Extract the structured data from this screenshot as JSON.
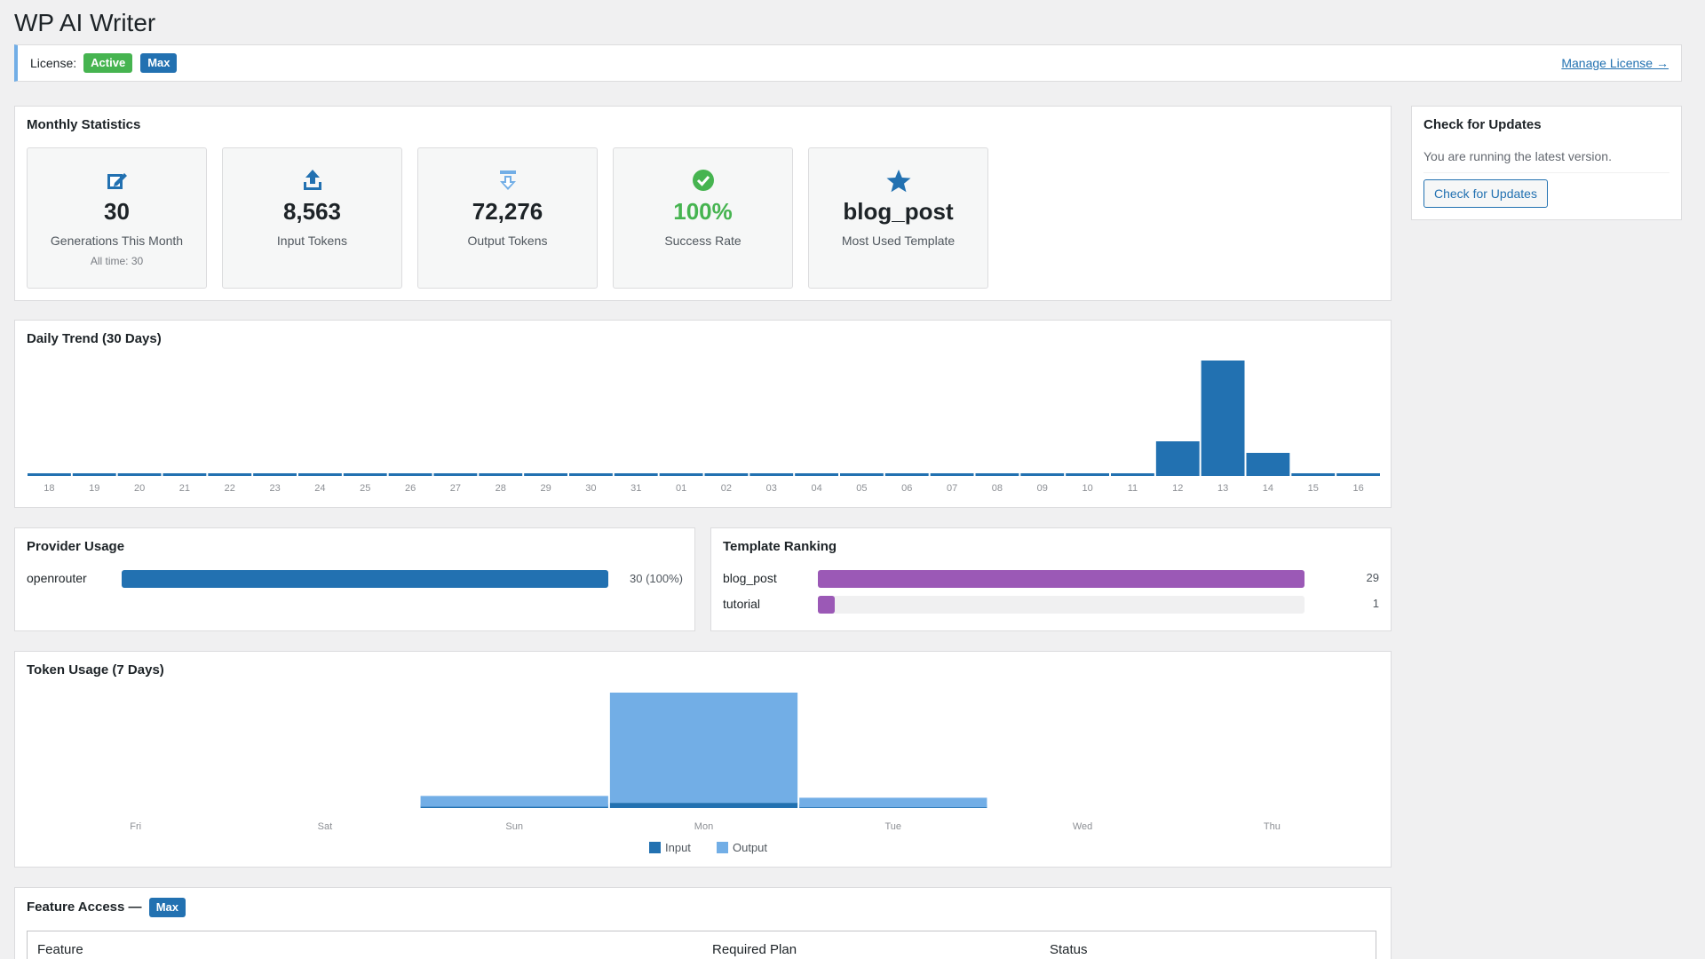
{
  "app": {
    "title": "WP AI Writer"
  },
  "license": {
    "label": "License:",
    "status": "Active",
    "plan": "Max",
    "manage_link": "Manage License →"
  },
  "monthly": {
    "title": "Monthly Statistics",
    "stats": [
      {
        "value": "30",
        "label": "Generations This Month",
        "sub": "All time: 30",
        "icon": "edit-icon"
      },
      {
        "value": "8,563",
        "label": "Input Tokens",
        "icon": "upload-icon"
      },
      {
        "value": "72,276",
        "label": "Output Tokens",
        "icon": "download-icon"
      },
      {
        "value": "100%",
        "label": "Success Rate",
        "icon": "check-circle-icon"
      },
      {
        "value": "blog_post",
        "label": "Most Used Template",
        "icon": "star-icon"
      }
    ]
  },
  "updates": {
    "title": "Check for Updates",
    "message": "You are running the latest version.",
    "button": "Check for Updates"
  },
  "colors": {
    "accent": "#2271b1",
    "light_blue": "#72aee6",
    "purple": "#9b59b6",
    "success": "#46b450"
  },
  "provider": {
    "title": "Provider Usage",
    "items": [
      {
        "name": "openrouter",
        "value": 30,
        "label": "30 (100%)",
        "fraction": 1.0
      }
    ]
  },
  "templates": {
    "title": "Template Ranking",
    "items": [
      {
        "name": "blog_post",
        "value": 29,
        "label": "29",
        "fraction": 1.0
      },
      {
        "name": "tutorial",
        "value": 1,
        "label": "1",
        "fraction": 0.0345
      }
    ]
  },
  "feature": {
    "title": "Feature Access —",
    "plan": "Max",
    "columns": [
      "Feature",
      "Required Plan",
      "Status"
    ]
  },
  "chart_data": [
    {
      "type": "bar",
      "title": "Daily Trend (30 Days)",
      "categories": [
        "18",
        "19",
        "20",
        "21",
        "22",
        "23",
        "24",
        "25",
        "26",
        "27",
        "28",
        "29",
        "30",
        "31",
        "01",
        "02",
        "03",
        "04",
        "05",
        "06",
        "07",
        "08",
        "09",
        "10",
        "11",
        "12",
        "13",
        "14",
        "15",
        "16"
      ],
      "values": [
        0,
        0,
        0,
        0,
        0,
        0,
        0,
        0,
        0,
        0,
        0,
        0,
        0,
        0,
        0,
        0,
        0,
        0,
        0,
        0,
        0,
        0,
        0,
        0,
        0,
        6,
        20,
        4,
        0,
        0
      ],
      "ylim": [
        0,
        20
      ]
    },
    {
      "type": "bar",
      "title": "Token Usage (7 Days)",
      "categories": [
        "Fri",
        "Sat",
        "Sun",
        "Mon",
        "Tue",
        "Wed",
        "Thu"
      ],
      "series": [
        {
          "name": "Input",
          "values": [
            0,
            0,
            700,
            2900,
            400,
            0,
            0
          ],
          "color": "#2271b1"
        },
        {
          "name": "Output",
          "values": [
            0,
            0,
            6000,
            61000,
            5300,
            0,
            0
          ],
          "color": "#72aee6"
        }
      ]
    }
  ]
}
